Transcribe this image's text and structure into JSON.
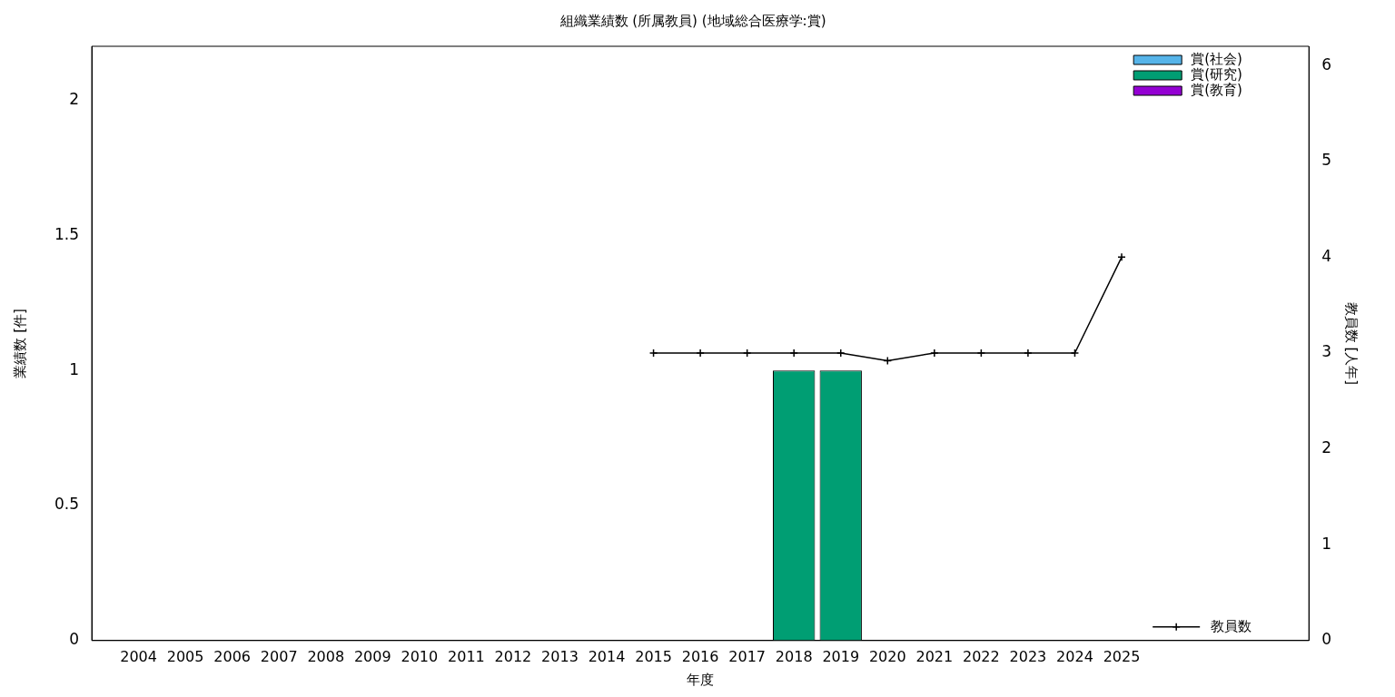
{
  "chart_data": {
    "type": "bar",
    "title": "組織業績数 (所属教員) (地域総合医療学:賞)",
    "xlabel": "年度",
    "ylabel": "業績数 [件]",
    "y2label": "教員数 [人年]",
    "categories": [
      null,
      "2004",
      "2005",
      "2006",
      "2007",
      "2008",
      "2009",
      "2010",
      "2011",
      "2012",
      "2013",
      "2014",
      "2015",
      "2016",
      "2017",
      "2018",
      "2019",
      "2020",
      "2021",
      "2022",
      "2023",
      "2024",
      "2025",
      null,
      null,
      null,
      null
    ],
    "stacked": true,
    "series": [
      {
        "name": "賞(社会)",
        "color": "#56b4e9",
        "values": [
          null,
          0,
          0,
          0,
          0,
          0,
          0,
          0,
          0,
          0,
          0,
          0,
          0,
          0,
          0,
          0,
          0,
          0,
          0,
          0,
          0,
          0,
          0,
          null,
          null,
          null,
          null
        ]
      },
      {
        "name": "賞(研究)",
        "color": "#009e73",
        "values": [
          null,
          0,
          0,
          0,
          0,
          0,
          0,
          0,
          0,
          0,
          0,
          0,
          0,
          0,
          0,
          1,
          1,
          0,
          0,
          0,
          0,
          0,
          0,
          null,
          null,
          null,
          null
        ]
      },
      {
        "name": "賞(教育)",
        "color": "#9400d3",
        "values": [
          null,
          0,
          0,
          0,
          0,
          0,
          0,
          0,
          0,
          0,
          0,
          0,
          0,
          0,
          0,
          0,
          0,
          0,
          0,
          0,
          0,
          0,
          0,
          null,
          null,
          null,
          null
        ]
      },
      {
        "name": "教員数",
        "type": "line",
        "axis": "y2",
        "color": "#000000",
        "marker": "cross",
        "values": [
          null,
          null,
          null,
          null,
          null,
          null,
          null,
          null,
          null,
          null,
          null,
          null,
          3,
          3,
          3,
          3,
          3,
          2.92,
          3,
          3,
          3,
          3,
          4,
          null,
          null,
          null,
          null
        ]
      }
    ],
    "ylim": [
      0,
      2.2
    ],
    "yticks": [
      0,
      0.5,
      1,
      1.5,
      2
    ],
    "y2lim": [
      0,
      6.2
    ],
    "y2ticks": [
      0,
      1,
      2,
      3,
      4,
      5,
      6
    ],
    "legend": "top right"
  }
}
